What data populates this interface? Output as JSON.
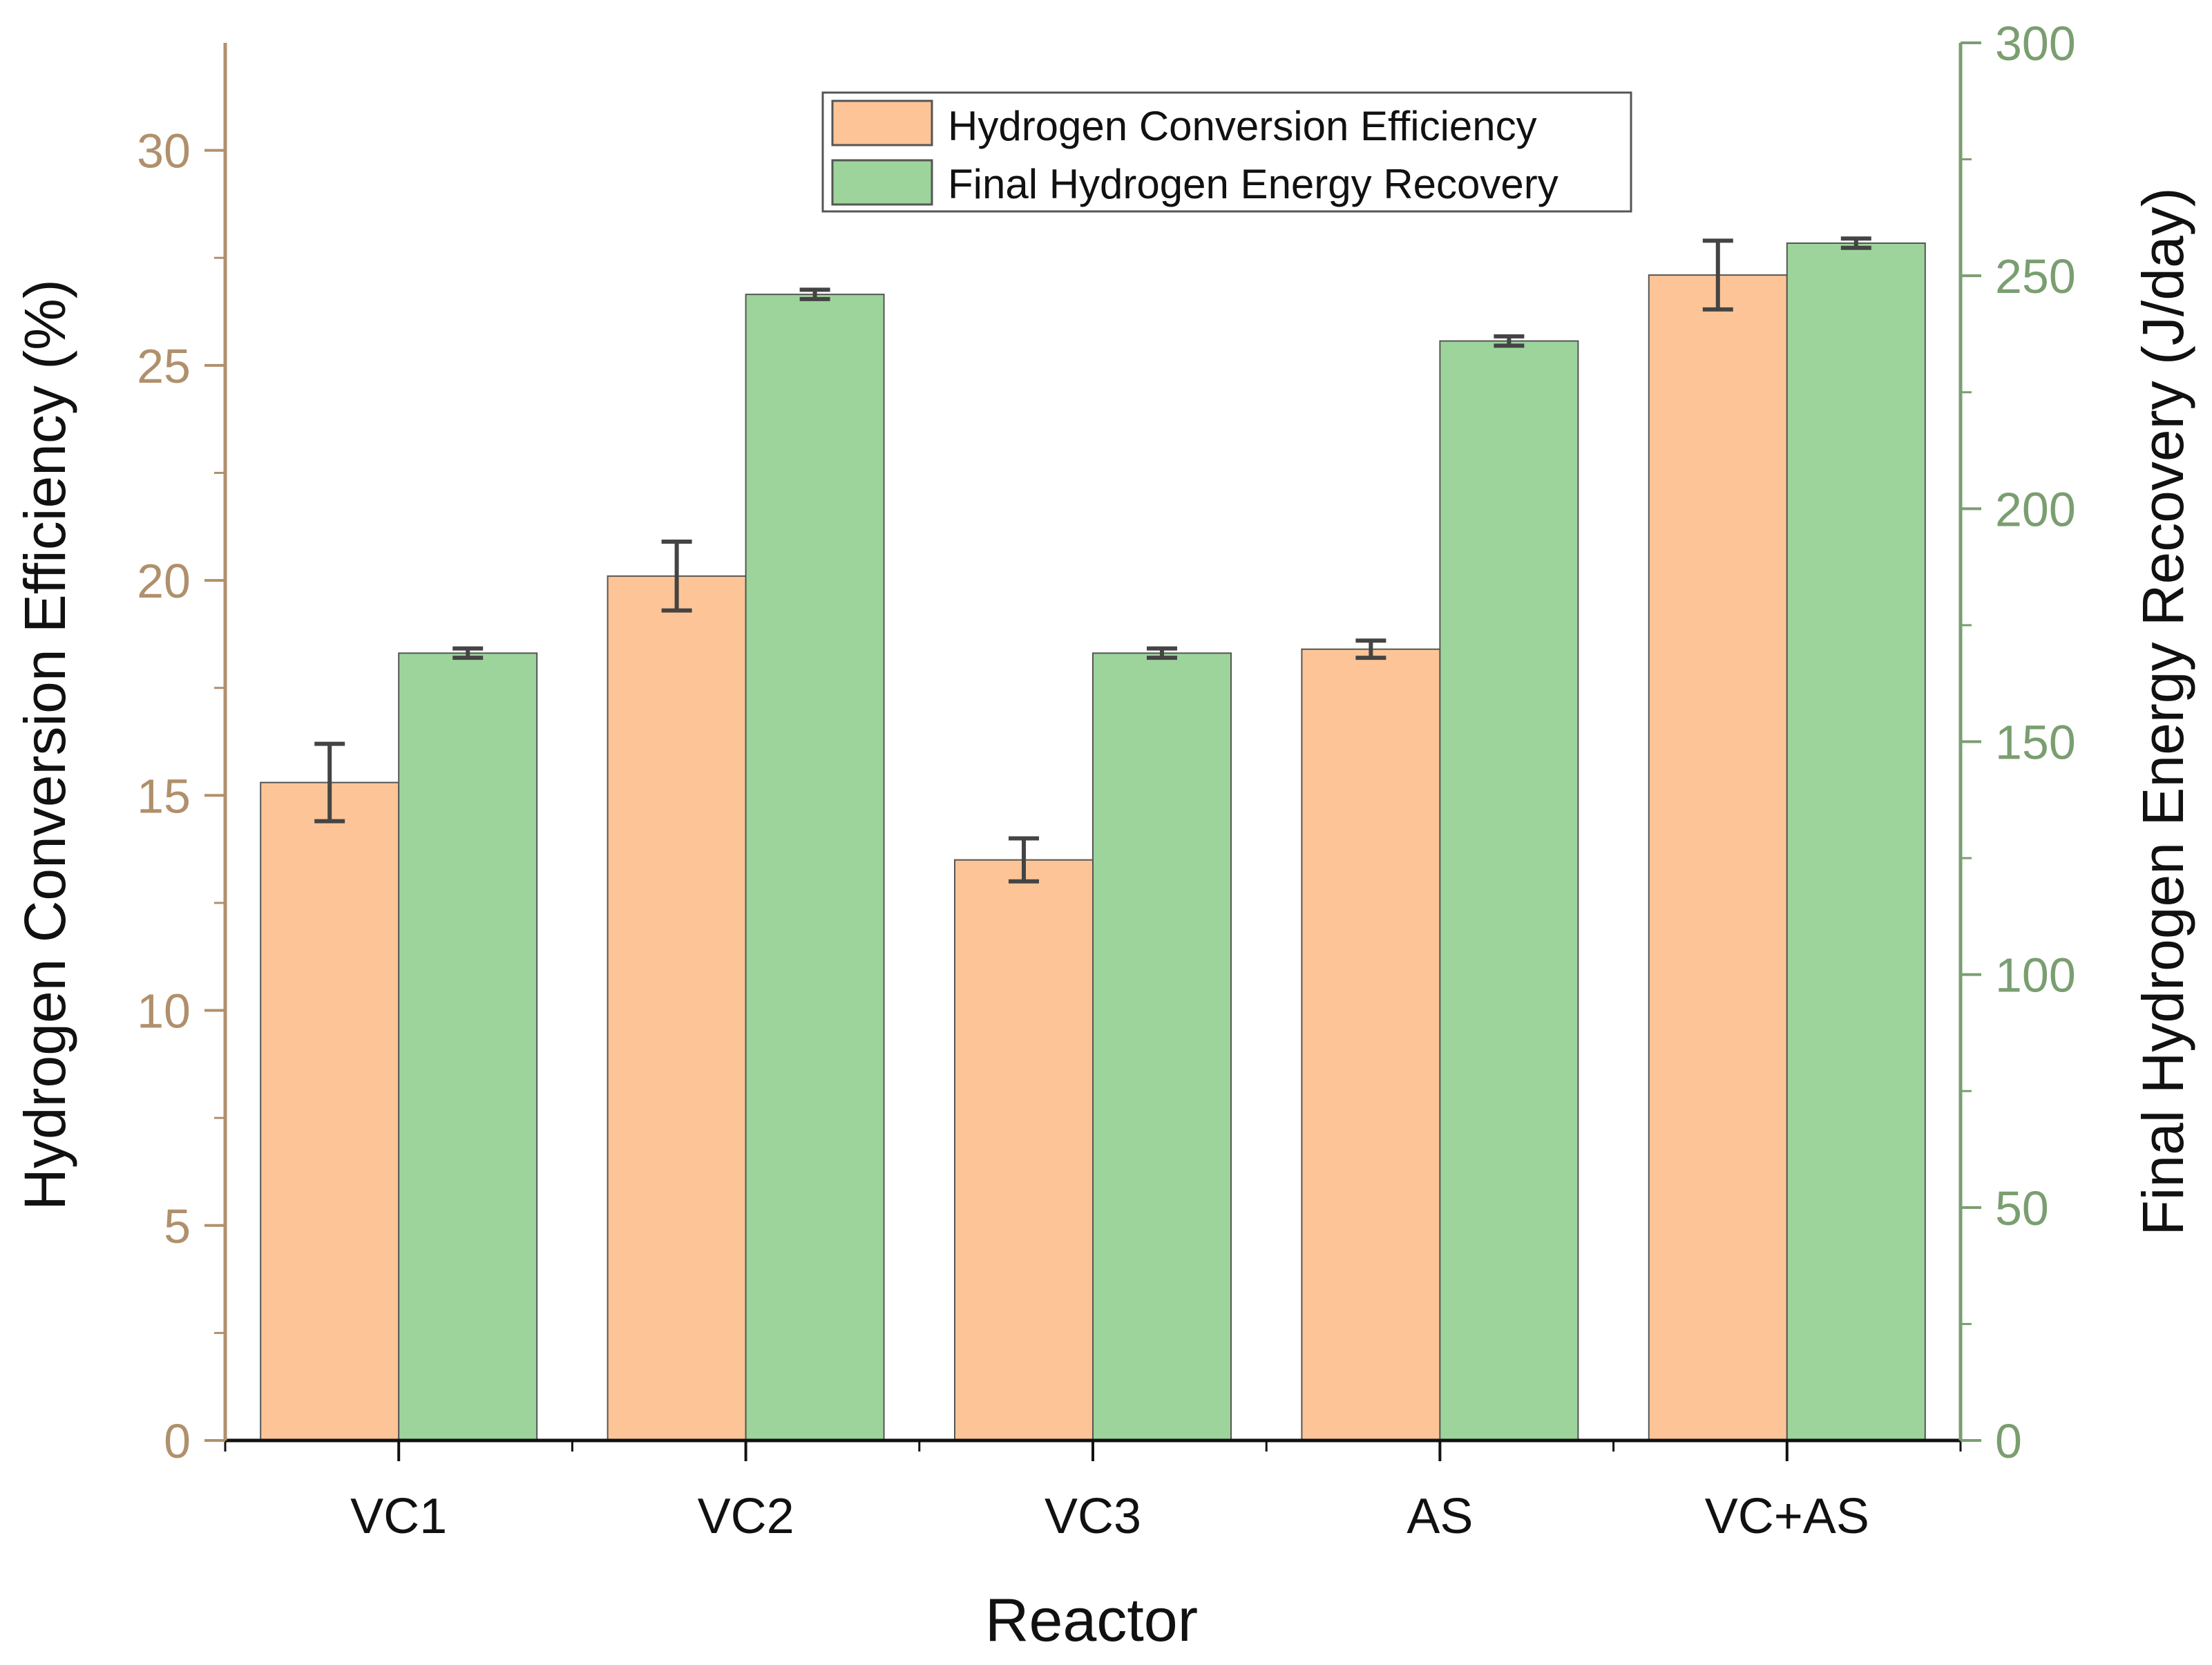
{
  "chart_data": {
    "type": "bar",
    "title": "",
    "xlabel": "Reactor",
    "categories": [
      "VC1",
      "VC2",
      "VC3",
      "AS",
      "VC+AS"
    ],
    "left_axis": {
      "label": "Hydrogen Conversion Efficiency (%)",
      "range": [
        0,
        32.5
      ],
      "ticks": [
        0,
        5,
        10,
        15,
        20,
        25,
        30
      ],
      "tick_labels": [
        "0",
        "5",
        "10",
        "15",
        "20",
        "25",
        "30"
      ],
      "color": "#b0906c"
    },
    "right_axis": {
      "label": "Final Hydrogen Energy Recovery (J/day)",
      "range": [
        0,
        300
      ],
      "ticks": [
        0,
        50,
        100,
        150,
        200,
        250,
        300
      ],
      "tick_labels": [
        "0",
        "50",
        "100",
        "150",
        "200",
        "250",
        "300"
      ],
      "color": "#7a9e70"
    },
    "series": [
      {
        "name": "Hydrogen Conversion Efficiency",
        "axis": "left",
        "color": "#fdc597",
        "values": [
          15.3,
          20.1,
          13.5,
          18.4,
          27.1
        ],
        "errors": [
          0.9,
          0.8,
          0.5,
          0.2,
          0.8
        ]
      },
      {
        "name": "Final Hydrogen Energy Recovery",
        "axis": "right",
        "color": "#9dd49b",
        "values": [
          169,
          246,
          169,
          236,
          257
        ],
        "errors": [
          1,
          1,
          1,
          1,
          1
        ]
      }
    ],
    "legend_position": "top-center",
    "grid": false
  }
}
